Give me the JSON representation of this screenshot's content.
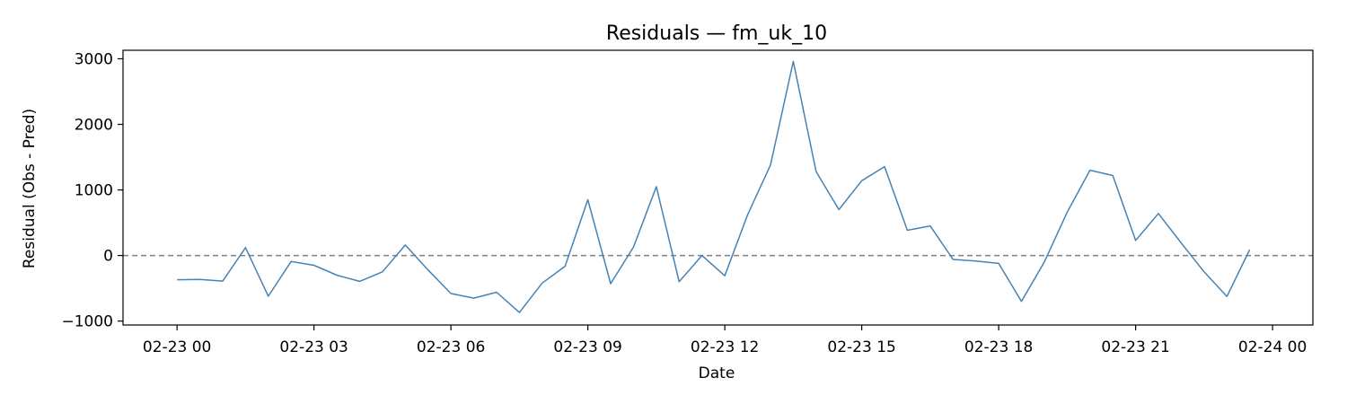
{
  "chart_data": {
    "type": "line",
    "title": "Residuals — fm_uk_10",
    "xlabel": "Date",
    "ylabel": "Residual (Obs - Pred)",
    "x_tick_labels": [
      "02-23 00",
      "02-23 03",
      "02-23 06",
      "02-23 09",
      "02-23 12",
      "02-23 15",
      "02-23 18",
      "02-23 21",
      "02-24 00"
    ],
    "y_tick_labels": [
      "−1000",
      "0",
      "1000",
      "2000",
      "3000"
    ],
    "y_ticks": [
      -1000,
      0,
      1000,
      2000,
      3000
    ],
    "xlim": [
      "2023-02-22T22:49",
      "2023-02-24T00:53"
    ],
    "ylim": [
      -1060,
      3130
    ],
    "reference_line": {
      "y": 0,
      "style": "dashed",
      "color": "#808080"
    },
    "grid": false,
    "series_color": "#4682b4",
    "x": [
      "00:00",
      "00:30",
      "01:00",
      "01:30",
      "02:00",
      "02:30",
      "03:00",
      "03:30",
      "04:00",
      "04:30",
      "05:00",
      "05:30",
      "06:00",
      "06:30",
      "07:00",
      "07:30",
      "08:00",
      "08:30",
      "09:00",
      "09:30",
      "10:00",
      "10:30",
      "11:00",
      "11:30",
      "12:00",
      "12:30",
      "13:00",
      "13:30",
      "14:00",
      "14:30",
      "15:00",
      "15:30",
      "16:00",
      "16:30",
      "17:00",
      "17:30",
      "18:00",
      "18:30",
      "19:00",
      "19:30",
      "20:00",
      "20:30",
      "21:00",
      "21:30",
      "22:00",
      "22:30",
      "23:00",
      "23:30"
    ],
    "x_date": "2023-02-23",
    "values": [
      -370,
      -365,
      -390,
      120,
      -620,
      -90,
      -150,
      -300,
      -395,
      -250,
      160,
      -220,
      -580,
      -650,
      -560,
      -870,
      -420,
      -165,
      850,
      -430,
      130,
      1050,
      -400,
      0,
      -310,
      620,
      1380,
      2960,
      1280,
      700,
      1140,
      1355,
      385,
      450,
      -60,
      -85,
      -120,
      -700,
      -100,
      660,
      1300,
      1220,
      230,
      640,
      190,
      -250,
      -625,
      90
    ]
  }
}
